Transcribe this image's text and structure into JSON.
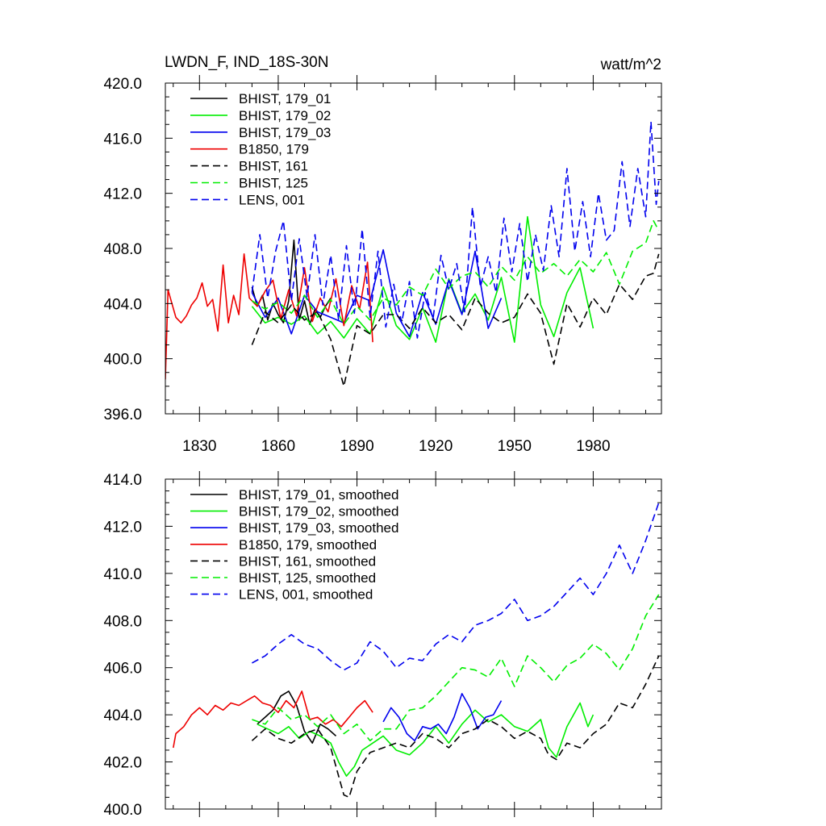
{
  "figure": {
    "title_left": "LWDN_F, IND_18S-30N",
    "title_right": "watt/m^2"
  },
  "colors": {
    "black": "#000000",
    "green": "#00ee00",
    "blue": "#0000ee",
    "red": "#ee0000"
  },
  "chart_data": [
    {
      "type": "line",
      "panel": "top",
      "title": "LWDN_F, IND_18S-30N",
      "units": "watt/m^2",
      "xlim": [
        1817,
        2006
      ],
      "ylim": [
        396,
        420
      ],
      "x_ticks": [
        1830,
        1860,
        1890,
        1920,
        1950,
        1980
      ],
      "y_ticks": [
        396,
        400,
        404,
        408,
        412,
        416,
        420
      ],
      "y_tick_labels": [
        "396.0",
        "400.0",
        "404.0",
        "408.0",
        "412.0",
        "416.0",
        "420.0"
      ],
      "legend_position": "top-left",
      "series": [
        {
          "name": "BHIST, 179_01",
          "color": "#000000",
          "dash": "solid",
          "x": [
            1850,
            1852,
            1854,
            1856,
            1858,
            1860,
            1862,
            1864,
            1866,
            1868,
            1870,
            1872,
            1874,
            1876,
            1878,
            1880
          ],
          "y": [
            405.2,
            403.8,
            404.6,
            402.8,
            404.0,
            403.2,
            402.6,
            404.2,
            408.6,
            402.8,
            404.2,
            402.5,
            403.6,
            403.0,
            403.8,
            404.4
          ]
        },
        {
          "name": "BHIST, 179_02",
          "color": "#00ee00",
          "dash": "solid",
          "x": [
            1850,
            1855,
            1860,
            1865,
            1870,
            1875,
            1880,
            1885,
            1890,
            1895,
            1900,
            1905,
            1910,
            1915,
            1920,
            1925,
            1930,
            1935,
            1940,
            1945,
            1950,
            1955,
            1960,
            1965,
            1970,
            1975,
            1980
          ],
          "y": [
            403.8,
            402.6,
            403.0,
            402.5,
            403.1,
            401.8,
            402.7,
            401.5,
            402.9,
            401.8,
            405.2,
            402.4,
            401.4,
            403.7,
            401.2,
            405.8,
            403.3,
            404.7,
            402.8,
            405.9,
            401.2,
            410.3,
            403.9,
            401.6,
            404.8,
            406.6,
            402.2
          ]
        },
        {
          "name": "BHIST, 179_03",
          "color": "#0000ee",
          "dash": "solid",
          "x": [
            1850,
            1855,
            1860,
            1865,
            1870,
            1875,
            1880,
            1885,
            1890,
            1895,
            1900,
            1905,
            1910,
            1915,
            1920,
            1925,
            1930,
            1935,
            1940,
            1945
          ],
          "y": [
            404.8,
            403.0,
            404.4,
            401.8,
            404.6,
            403.4,
            403.0,
            402.6,
            404.6,
            404.2,
            407.9,
            403.3,
            401.6,
            404.8,
            402.5,
            405.7,
            403.2,
            407.8,
            402.2,
            404.4
          ]
        },
        {
          "name": "B1850, 179",
          "color": "#ee0000",
          "dash": "solid",
          "x": [
            1817,
            1818,
            1821,
            1823,
            1825,
            1827,
            1829,
            1831,
            1833,
            1835,
            1837,
            1839,
            1841,
            1843,
            1845,
            1847,
            1849,
            1852,
            1855,
            1858,
            1861,
            1864,
            1867,
            1870,
            1873,
            1876,
            1879,
            1882,
            1885,
            1888,
            1891,
            1894,
            1896
          ],
          "y": [
            398.5,
            405.0,
            403.0,
            402.6,
            403.1,
            403.9,
            404.4,
            405.5,
            403.8,
            404.3,
            402.0,
            406.8,
            402.6,
            404.6,
            403.2,
            407.6,
            404.4,
            403.8,
            404.9,
            405.7,
            402.9,
            405.0,
            403.1,
            406.6,
            402.7,
            404.4,
            403.4,
            405.8,
            402.4,
            405.3,
            403.6,
            407.0,
            401.2
          ]
        },
        {
          "name": "BHIST, 161",
          "color": "#000000",
          "dash": "dashed",
          "x": [
            1850,
            1855,
            1860,
            1865,
            1870,
            1875,
            1880,
            1885,
            1890,
            1895,
            1900,
            1905,
            1910,
            1915,
            1920,
            1925,
            1930,
            1935,
            1940,
            1945,
            1950,
            1955,
            1960,
            1965,
            1970,
            1975,
            1980,
            1985,
            1990,
            1995,
            2000,
            2003,
            2005
          ],
          "y": [
            401.0,
            403.4,
            402.6,
            403.9,
            402.8,
            403.4,
            401.4,
            398.0,
            402.4,
            401.8,
            403.2,
            403.2,
            402.2,
            403.7,
            402.6,
            403.2,
            402.1,
            404.4,
            403.3,
            402.6,
            403.0,
            404.7,
            403.3,
            399.6,
            404.0,
            402.3,
            404.4,
            403.2,
            405.4,
            404.3,
            406.0,
            406.2,
            407.6
          ]
        },
        {
          "name": "BHIST, 125",
          "color": "#00ee00",
          "dash": "dashed",
          "x": [
            1850,
            1855,
            1860,
            1865,
            1870,
            1875,
            1880,
            1885,
            1890,
            1895,
            1900,
            1905,
            1910,
            1915,
            1920,
            1925,
            1930,
            1935,
            1940,
            1945,
            1950,
            1955,
            1960,
            1965,
            1970,
            1975,
            1980,
            1985,
            1990,
            1995,
            2000,
            2003,
            2005
          ],
          "y": [
            404.2,
            403.6,
            404.1,
            403.3,
            404.6,
            403.0,
            404.3,
            402.5,
            403.8,
            402.8,
            404.4,
            403.9,
            405.2,
            404.6,
            406.5,
            405.1,
            406.0,
            406.3,
            405.2,
            406.7,
            405.7,
            407.4,
            406.2,
            406.9,
            406.0,
            407.2,
            406.3,
            407.7,
            405.4,
            407.8,
            408.4,
            410.0,
            409.3
          ]
        },
        {
          "name": "LENS, 001",
          "color": "#0000ee",
          "dash": "dashed",
          "x": [
            1850,
            1853,
            1856,
            1859,
            1862,
            1865,
            1868,
            1871,
            1874,
            1877,
            1880,
            1883,
            1886,
            1889,
            1892,
            1895,
            1898,
            1901,
            1904,
            1907,
            1910,
            1913,
            1916,
            1919,
            1922,
            1925,
            1928,
            1931,
            1934,
            1937,
            1940,
            1943,
            1946,
            1949,
            1952,
            1955,
            1958,
            1961,
            1964,
            1967,
            1970,
            1973,
            1976,
            1979,
            1982,
            1985,
            1988,
            1991,
            1994,
            1997,
            2000,
            2002,
            2004,
            2005
          ],
          "y": [
            404.8,
            409.0,
            404.4,
            407.8,
            410.0,
            404.2,
            408.7,
            404.5,
            409.0,
            403.9,
            407.5,
            402.8,
            408.2,
            403.3,
            409.4,
            403.0,
            407.8,
            402.3,
            405.4,
            402.6,
            405.6,
            401.5,
            404.8,
            402.9,
            407.5,
            405.0,
            406.9,
            403.4,
            411.0,
            405.2,
            407.4,
            404.8,
            410.2,
            406.3,
            409.8,
            405.6,
            409.0,
            406.4,
            411.1,
            407.4,
            413.8,
            407.8,
            411.4,
            407.4,
            412.0,
            408.6,
            409.3,
            414.3,
            409.6,
            413.8,
            410.3,
            417.2,
            411.2,
            412.9
          ]
        }
      ]
    },
    {
      "type": "line",
      "panel": "bottom",
      "xlim": [
        1817,
        2006
      ],
      "ylim": [
        400,
        414
      ],
      "y_ticks": [
        400,
        402,
        404,
        406,
        408,
        410,
        412,
        414
      ],
      "y_tick_labels": [
        "400.0",
        "402.0",
        "404.0",
        "406.0",
        "408.0",
        "410.0",
        "412.0",
        "414.0"
      ],
      "legend_position": "top-left",
      "series": [
        {
          "name": "BHIST, 179_01, smoothed",
          "color": "#000000",
          "dash": "solid",
          "x": [
            1852,
            1855,
            1858,
            1861,
            1864,
            1867,
            1870,
            1873,
            1876,
            1879,
            1882
          ],
          "y": [
            403.6,
            403.9,
            404.2,
            404.8,
            405.0,
            404.4,
            403.3,
            402.8,
            403.6,
            403.4,
            403.1
          ]
        },
        {
          "name": "BHIST, 179_02, smoothed",
          "color": "#00ee00",
          "dash": "solid",
          "x": [
            1852,
            1856,
            1860,
            1864,
            1868,
            1872,
            1876,
            1880,
            1883,
            1886,
            1889,
            1892,
            1896,
            1900,
            1905,
            1910,
            1915,
            1920,
            1925,
            1930,
            1935,
            1940,
            1945,
            1950,
            1955,
            1960,
            1963,
            1966,
            1970,
            1975,
            1978,
            1980
          ],
          "y": [
            403.6,
            403.4,
            403.2,
            403.5,
            403.0,
            403.3,
            403.1,
            402.8,
            402.0,
            401.4,
            401.8,
            402.5,
            402.8,
            403.1,
            402.5,
            402.3,
            402.8,
            403.5,
            402.8,
            403.6,
            404.2,
            403.7,
            404.0,
            403.5,
            403.3,
            403.8,
            402.6,
            402.2,
            403.5,
            404.5,
            403.5,
            404.0
          ]
        },
        {
          "name": "BHIST, 179_03, smoothed",
          "color": "#0000ee",
          "dash": "solid",
          "x": [
            1900,
            1903,
            1906,
            1909,
            1912,
            1915,
            1918,
            1921,
            1924,
            1927,
            1930,
            1933,
            1936,
            1939,
            1942,
            1945
          ],
          "y": [
            403.7,
            404.3,
            403.9,
            403.2,
            402.9,
            403.5,
            403.4,
            403.6,
            403.2,
            403.9,
            404.9,
            404.3,
            403.4,
            403.9,
            404.0,
            404.6
          ]
        },
        {
          "name": "B1850, 179, smoothed",
          "color": "#ee0000",
          "dash": "solid",
          "x": [
            1820,
            1821,
            1824,
            1827,
            1830,
            1833,
            1836,
            1839,
            1842,
            1845,
            1848,
            1851,
            1854,
            1857,
            1860,
            1863,
            1866,
            1869,
            1872,
            1875,
            1878,
            1881,
            1884,
            1887,
            1890,
            1893,
            1896
          ],
          "y": [
            402.6,
            403.2,
            403.5,
            404.0,
            404.3,
            404.0,
            404.4,
            404.2,
            404.5,
            404.4,
            404.6,
            404.8,
            404.5,
            404.4,
            404.1,
            404.6,
            404.3,
            405.0,
            403.8,
            403.9,
            403.6,
            403.8,
            403.5,
            403.9,
            404.3,
            404.6,
            404.1
          ]
        },
        {
          "name": "BHIST, 161, smoothed",
          "color": "#000000",
          "dash": "dashed",
          "x": [
            1850,
            1855,
            1860,
            1865,
            1870,
            1875,
            1880,
            1883,
            1885,
            1887,
            1890,
            1895,
            1900,
            1905,
            1910,
            1915,
            1920,
            1925,
            1930,
            1935,
            1940,
            1945,
            1950,
            1955,
            1960,
            1963,
            1966,
            1970,
            1975,
            1980,
            1985,
            1990,
            1995,
            2000,
            2005
          ],
          "y": [
            402.9,
            403.4,
            403.0,
            402.8,
            403.2,
            403.4,
            402.6,
            401.4,
            400.6,
            400.5,
            401.6,
            402.4,
            402.6,
            402.8,
            402.6,
            403.2,
            403.0,
            402.6,
            403.2,
            403.4,
            403.8,
            403.5,
            403.0,
            403.3,
            403.0,
            402.3,
            402.1,
            402.8,
            402.6,
            403.2,
            403.6,
            404.5,
            404.3,
            405.3,
            406.5
          ]
        },
        {
          "name": "BHIST, 125, smoothed",
          "color": "#00ee00",
          "dash": "dashed",
          "x": [
            1850,
            1855,
            1860,
            1865,
            1870,
            1875,
            1880,
            1885,
            1890,
            1895,
            1900,
            1905,
            1910,
            1915,
            1920,
            1925,
            1930,
            1935,
            1940,
            1945,
            1950,
            1955,
            1960,
            1965,
            1970,
            1975,
            1980,
            1985,
            1990,
            1995,
            2000,
            2005
          ],
          "y": [
            403.8,
            403.6,
            404.3,
            403.8,
            404.0,
            403.5,
            404.0,
            403.2,
            403.6,
            402.9,
            403.4,
            403.4,
            404.2,
            404.3,
            404.8,
            405.4,
            406.0,
            405.9,
            405.6,
            406.4,
            405.2,
            406.5,
            406.0,
            405.4,
            406.1,
            406.4,
            407.0,
            406.6,
            405.9,
            406.8,
            408.2,
            409.1
          ]
        },
        {
          "name": "LENS, 001, smoothed",
          "color": "#0000ee",
          "dash": "dashed",
          "x": [
            1850,
            1855,
            1860,
            1865,
            1870,
            1875,
            1880,
            1885,
            1890,
            1895,
            1900,
            1905,
            1910,
            1915,
            1920,
            1925,
            1930,
            1935,
            1940,
            1945,
            1950,
            1955,
            1960,
            1965,
            1970,
            1975,
            1980,
            1985,
            1990,
            1995,
            2000,
            2005
          ],
          "y": [
            406.2,
            406.5,
            407.0,
            407.4,
            407.0,
            406.8,
            406.3,
            405.9,
            406.2,
            407.1,
            406.7,
            406.0,
            406.4,
            406.3,
            407.0,
            407.4,
            407.1,
            407.8,
            408.0,
            408.3,
            408.9,
            408.0,
            408.2,
            408.6,
            409.2,
            409.8,
            409.1,
            410.0,
            411.2,
            410.0,
            411.4,
            413.0
          ]
        }
      ]
    }
  ]
}
